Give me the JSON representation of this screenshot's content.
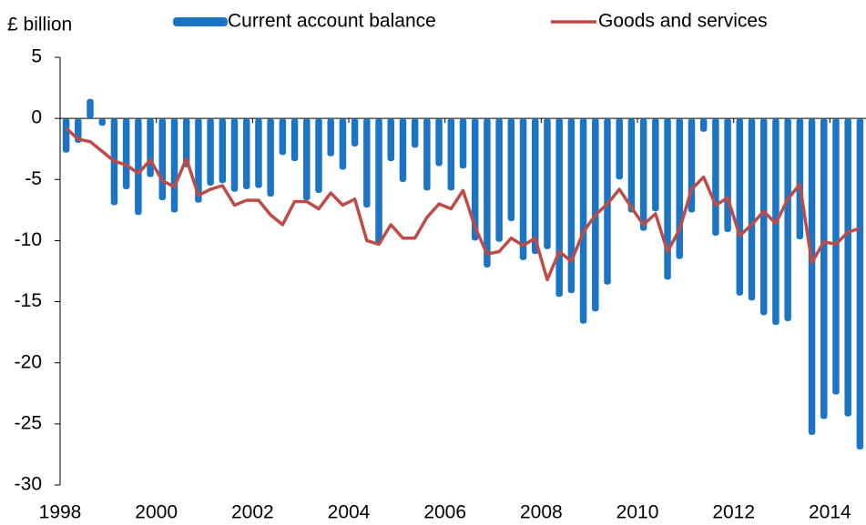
{
  "chart_data": {
    "type": "bar-line",
    "title": "£ billion",
    "categories": [
      "1998",
      null,
      null,
      null,
      null,
      null,
      null,
      null,
      "2000",
      null,
      null,
      null,
      null,
      null,
      null,
      null,
      "2002",
      null,
      null,
      null,
      null,
      null,
      null,
      null,
      "2004",
      null,
      null,
      null,
      null,
      null,
      null,
      null,
      "2006",
      null,
      null,
      null,
      null,
      null,
      null,
      null,
      "2008",
      null,
      null,
      null,
      null,
      null,
      null,
      null,
      "2010",
      null,
      null,
      null,
      null,
      null,
      null,
      null,
      "2012",
      null,
      null,
      null,
      null,
      null,
      null,
      null,
      "2014",
      null,
      null
    ],
    "series": [
      {
        "name": "Current account balance",
        "type": "bar",
        "color": "#1c75c4",
        "values": [
          -2.8,
          -2.0,
          1.6,
          -0.6,
          -7.1,
          -5.8,
          -7.9,
          -4.8,
          -6.7,
          -7.7,
          -4.0,
          -6.9,
          -5.5,
          -5.3,
          -6.0,
          -5.8,
          -5.7,
          -6.4,
          -3.0,
          -3.5,
          -6.7,
          -6.1,
          -3.1,
          -4.2,
          -2.3,
          -7.3,
          -10.3,
          -3.5,
          -5.2,
          -2.4,
          -5.9,
          -3.9,
          -5.9,
          -4.1,
          -10.0,
          -12.2,
          -10.1,
          -8.4,
          -11.6,
          -11.1,
          -10.7,
          -14.6,
          -14.3,
          -16.8,
          -15.8,
          -13.6,
          -5.0,
          -7.7,
          -9.2,
          -7.6,
          -13.2,
          -11.5,
          -7.7,
          -1.1,
          -9.6,
          -9.3,
          -14.5,
          -14.9,
          -16.1,
          -16.9,
          -16.6,
          -9.9,
          -25.9,
          -24.6,
          -22.6,
          -24.4,
          -27.1
        ]
      },
      {
        "name": "Goods and services",
        "type": "line",
        "color": "#be4b48",
        "values": [
          -0.8,
          -1.7,
          -1.9,
          -2.7,
          -3.5,
          -3.8,
          -4.5,
          -3.4,
          -5.1,
          -5.6,
          -3.3,
          -6.3,
          -5.8,
          -5.5,
          -7.1,
          -6.7,
          -6.7,
          -7.9,
          -8.7,
          -6.8,
          -6.8,
          -7.4,
          -6.1,
          -7.1,
          -6.6,
          -10.0,
          -10.3,
          -8.7,
          -9.8,
          -9.8,
          -8.1,
          -7.0,
          -7.4,
          -5.9,
          -8.9,
          -11.1,
          -10.9,
          -9.8,
          -10.4,
          -9.8,
          -13.2,
          -10.9,
          -11.7,
          -9.3,
          -7.9,
          -7.0,
          -5.8,
          -7.3,
          -8.7,
          -7.8,
          -10.9,
          -9.1,
          -5.8,
          -4.8,
          -7.1,
          -6.5,
          -9.6,
          -8.7,
          -7.6,
          -8.6,
          -6.6,
          -5.4,
          -11.8,
          -10.1,
          -10.3,
          -9.3,
          -9.0
        ]
      }
    ],
    "ylim": [
      -30,
      5
    ],
    "yticks": [
      -30,
      -25,
      -20,
      -15,
      -10,
      -5,
      0,
      5
    ],
    "legend": "top",
    "grid": false
  }
}
